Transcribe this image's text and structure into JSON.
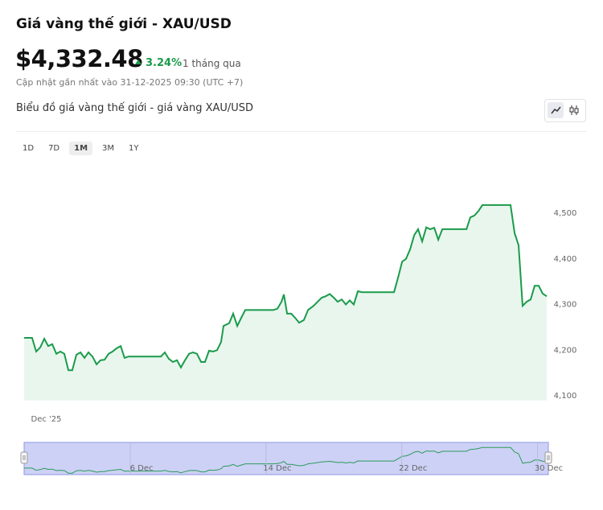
{
  "header": {
    "title": "Giá vàng thế giới - XAU/USD",
    "price": "$4,332.48",
    "change": "3.24%",
    "period": "1 tháng qua",
    "updated": "Cập nhật gần nhất vào 31-12-2025 09:30 (UTC +7)",
    "chart_title": "Biểu đồ giá vàng thế giới - giá vàng XAU/USD"
  },
  "ranges": [
    "1D",
    "7D",
    "1M",
    "3M",
    "1Y"
  ],
  "selected_range": "1M",
  "chart_data": {
    "type": "line",
    "color": "#1a9b4b",
    "fill": "#e9f6ee",
    "x": [
      -0.92,
      -0.45,
      -0.21,
      0.03,
      0.27,
      0.5,
      0.74,
      0.98,
      1.21,
      1.45,
      1.69,
      1.92,
      2.16,
      2.4,
      2.64,
      2.87,
      3.11,
      3.35,
      3.58,
      3.82,
      4.06,
      4.29,
      4.53,
      4.77,
      5.0,
      5.24,
      6.19,
      7.14,
      7.37,
      7.61,
      7.85,
      8.09,
      8.32,
      8.56,
      8.8,
      9.03,
      9.27,
      9.51,
      9.74,
      9.98,
      10.22,
      10.45,
      10.69,
      10.83,
      11.17,
      11.4,
      11.64,
      11.88,
      12.11,
      12.35,
      13.77,
      14.01,
      14.25,
      14.39,
      14.58,
      14.82,
      15.05,
      15.29,
      15.57,
      15.81,
      16.14,
      16.38,
      16.62,
      16.85,
      17.09,
      17.33,
      17.56,
      17.8,
      18.04,
      18.27,
      18.51,
      18.75,
      18.99,
      20.88,
      21.12,
      21.36,
      21.59,
      21.83,
      22.07,
      22.3,
      22.54,
      22.78,
      23.01,
      23.25,
      23.49,
      23.73,
      25.15,
      25.38,
      25.62,
      25.86,
      26.09,
      27.04,
      27.75,
      27.99,
      28.22,
      28.46,
      28.7,
      28.93,
      29.17,
      29.41,
      29.64,
      29.88
    ],
    "values": [
      4227,
      4227,
      4197,
      4206,
      4225,
      4209,
      4213,
      4192,
      4197,
      4192,
      4156,
      4156,
      4190,
      4195,
      4183,
      4195,
      4186,
      4169,
      4178,
      4179,
      4192,
      4197,
      4204,
      4209,
      4183,
      4186,
      4186,
      4186,
      4195,
      4181,
      4174,
      4178,
      4162,
      4178,
      4192,
      4195,
      4192,
      4174,
      4174,
      4199,
      4197,
      4200,
      4218,
      4253,
      4259,
      4280,
      4253,
      4271,
      4288,
      4288,
      4288,
      4291,
      4306,
      4322,
      4280,
      4280,
      4271,
      4260,
      4266,
      4288,
      4297,
      4306,
      4315,
      4318,
      4323,
      4315,
      4306,
      4311,
      4300,
      4309,
      4300,
      4329,
      4327,
      4327,
      4359,
      4394,
      4400,
      4421,
      4452,
      4465,
      4438,
      4469,
      4465,
      4468,
      4442,
      4465,
      4465,
      4491,
      4495,
      4505,
      4518,
      4518,
      4518,
      4456,
      4430,
      4297,
      4306,
      4311,
      4341,
      4341,
      4324,
      4318
    ],
    "xlim": [
      -0.92,
      29.88
    ],
    "xticks": [
      {
        "value": 1,
        "label": "Dec '25"
      }
    ],
    "ylim": [
      4090,
      4590
    ],
    "yticks": [
      {
        "value": 4100,
        "label": "4,100"
      },
      {
        "value": 4200,
        "label": "4,200"
      },
      {
        "value": 4300,
        "label": "4,300"
      },
      {
        "value": 4400,
        "label": "4,400"
      },
      {
        "value": 4500,
        "label": "4,500"
      }
    ],
    "grid": false,
    "navigator": {
      "color": "#2b9b5a",
      "background": "#cdd1f6",
      "border": "#8e96e2",
      "xticks": [
        {
          "value": 6,
          "label": "6 Dec"
        },
        {
          "value": 14,
          "label": "14 Dec"
        },
        {
          "value": 22,
          "label": "22 Dec"
        },
        {
          "value": 30,
          "label": "30 Dec"
        }
      ]
    }
  }
}
